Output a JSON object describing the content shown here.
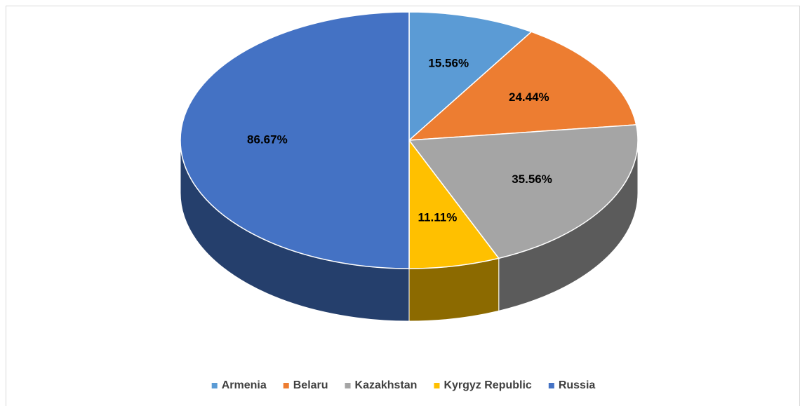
{
  "chart_data": {
    "type": "pie",
    "categories": [
      "Armenia",
      "Belaru",
      "Kazakhstan",
      "Kyrgyz Republic",
      "Russia"
    ],
    "values": [
      15.56,
      24.44,
      35.56,
      11.11,
      86.67
    ],
    "value_labels": [
      "15.56%",
      "24.44%",
      "35.56%",
      "11.11%",
      "86.67%"
    ],
    "colors": [
      "#5b9bd5",
      "#ed7d31",
      "#a5a5a5",
      "#ffc000",
      "#4472c4"
    ],
    "legend": "bottom"
  }
}
